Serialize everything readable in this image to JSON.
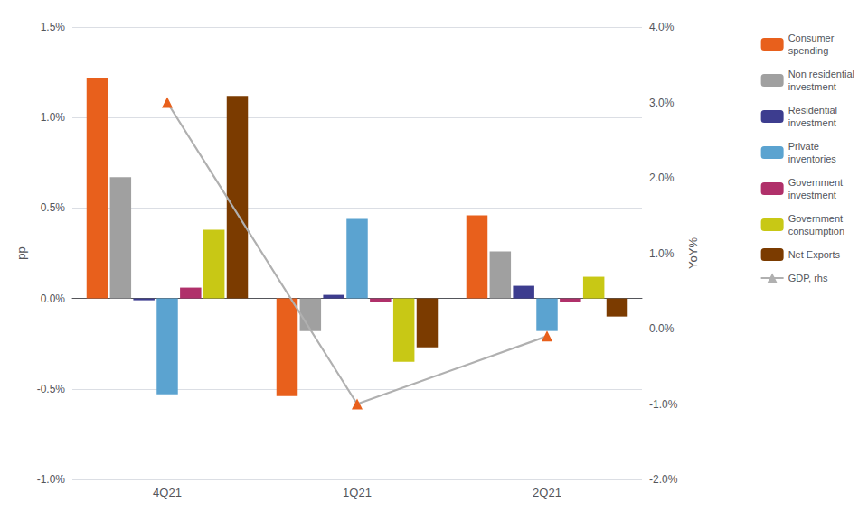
{
  "chart_data": {
    "type": "bar",
    "categories": [
      "4Q21",
      "1Q21",
      "2Q21"
    ],
    "series": [
      {
        "name": "Consumer\nspending",
        "color": "#E8601C",
        "values": [
          1.22,
          -0.54,
          0.46
        ]
      },
      {
        "name": "Non residential\ninvestment",
        "color": "#A0A0A0",
        "values": [
          0.67,
          -0.18,
          0.26
        ]
      },
      {
        "name": "Residential\ninvestment",
        "color": "#3D3D8F",
        "values": [
          -0.01,
          0.02,
          0.07
        ]
      },
      {
        "name": "Private\ninventories",
        "color": "#5BA3D0",
        "values": [
          -0.53,
          0.44,
          -0.18
        ]
      },
      {
        "name": "Government\ninvestment",
        "color": "#B0306A",
        "values": [
          0.06,
          -0.02,
          -0.02
        ]
      },
      {
        "name": "Government\nconsumption",
        "color": "#C8C815",
        "values": [
          0.38,
          -0.35,
          0.12
        ]
      },
      {
        "name": "Net Exports",
        "color": "#7B3B00",
        "values": [
          1.12,
          -0.27,
          -0.1
        ]
      },
      {
        "name": "GDP, rhs",
        "type": "line",
        "axis": "y2",
        "color": "#B0B0B0",
        "marker": "triangle",
        "colors": [
          "#E8601C",
          "#E8601C",
          "#E8601C"
        ],
        "values": [
          3.0,
          -1.0,
          -0.1
        ]
      }
    ],
    "ylabel": "pp",
    "y2label": "YoY%",
    "ylim": [
      -1.0,
      1.5
    ],
    "yticks": [
      {
        "value": -1.0,
        "label": "-1.0%"
      },
      {
        "value": -0.5,
        "label": "-0.5%"
      },
      {
        "value": 0.0,
        "label": "0.0%"
      },
      {
        "value": 0.5,
        "label": "0.5%"
      },
      {
        "value": 1.0,
        "label": "1.0%"
      },
      {
        "value": 1.5,
        "label": "1.5%"
      }
    ],
    "y2lim": [
      -2.0,
      4.0
    ],
    "y2ticks": [
      {
        "value": -2.0,
        "label": "-2.0%"
      },
      {
        "value": -1.0,
        "label": "-1.0%"
      },
      {
        "value": 0.0,
        "label": "0.0%"
      },
      {
        "value": 1.0,
        "label": "1.0%"
      },
      {
        "value": 2.0,
        "label": "2.0%"
      },
      {
        "value": 3.0,
        "label": "3.0%"
      },
      {
        "value": 4.0,
        "label": "4.0%"
      }
    ],
    "grid": true,
    "legend": "right"
  }
}
